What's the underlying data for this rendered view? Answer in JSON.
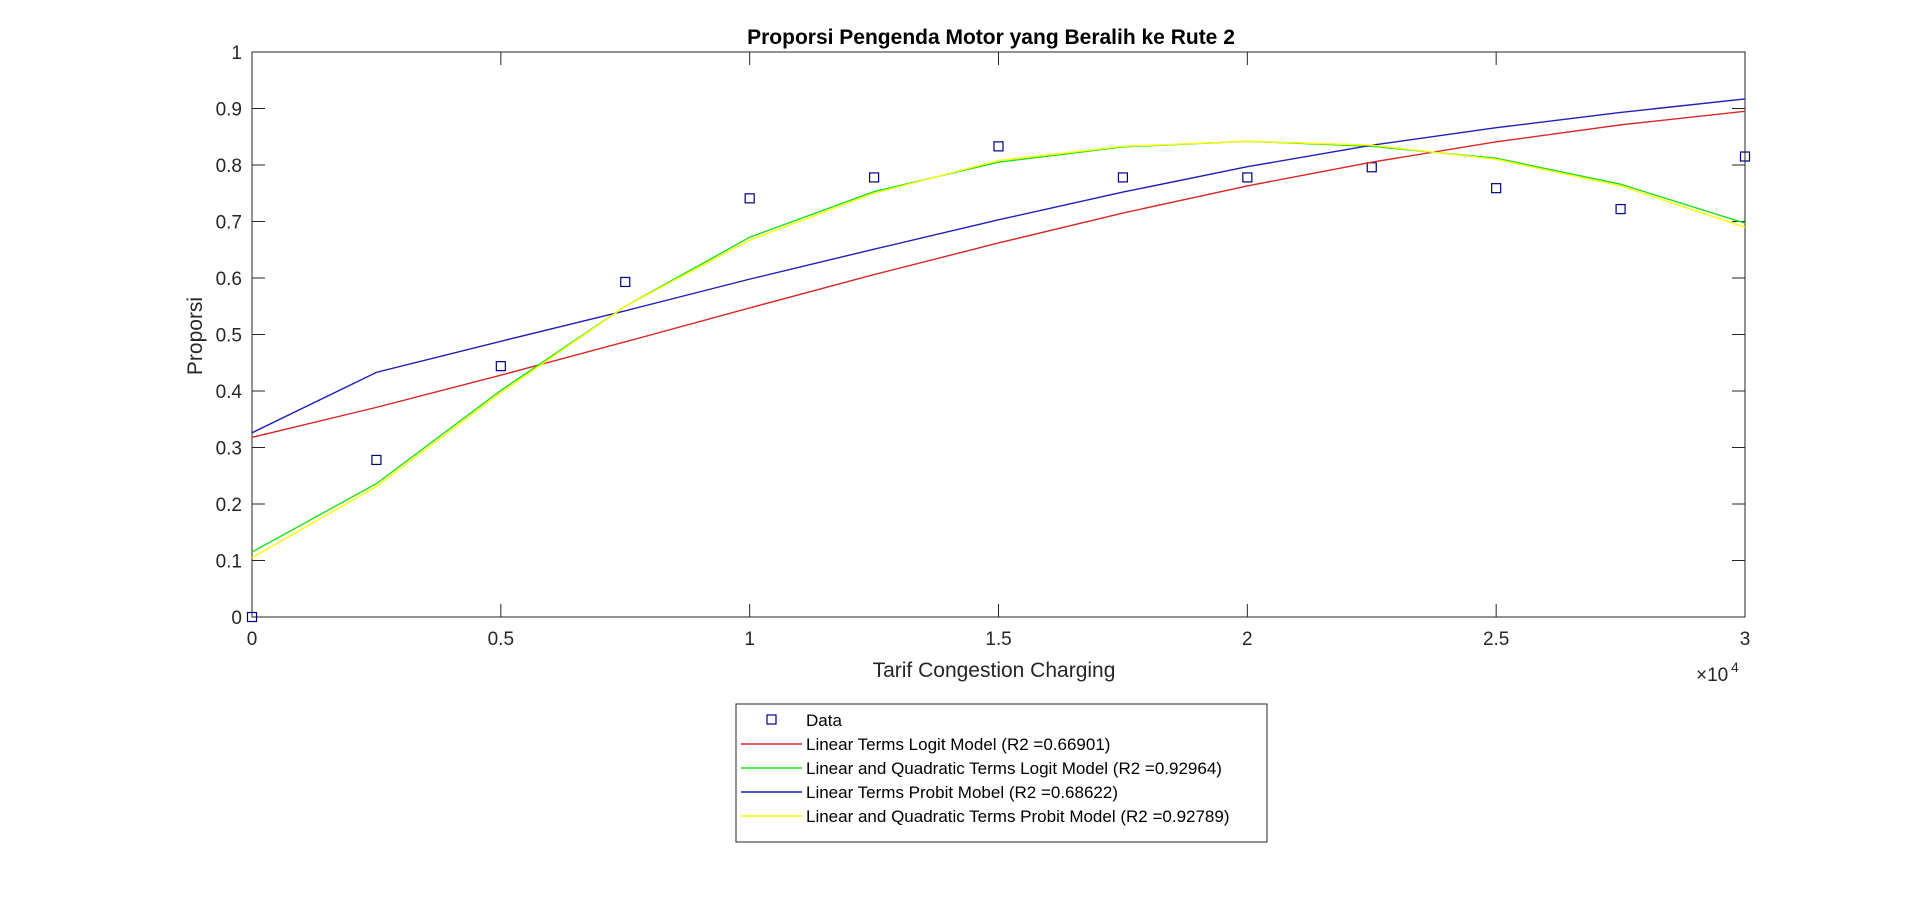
{
  "chart_data": {
    "type": "line",
    "title": "Proporsi Pengenda Motor yang Beralih ke Rute 2",
    "xlabel": "Tarif Congestion Charging",
    "ylabel": "Proporsi",
    "x_exponent_label": "×10",
    "x_exponent_power": "4",
    "xlim": [
      0,
      30000
    ],
    "ylim": [
      0,
      1
    ],
    "x_ticks": [
      0,
      5000,
      10000,
      15000,
      20000,
      25000,
      30000
    ],
    "x_tick_labels": [
      "0",
      "0.5",
      "1",
      "1.5",
      "2",
      "2.5",
      "3"
    ],
    "y_ticks": [
      0,
      0.1,
      0.2,
      0.3,
      0.4,
      0.5,
      0.6,
      0.7,
      0.8,
      0.9,
      1
    ],
    "y_tick_labels": [
      "0",
      "0.1",
      "0.2",
      "0.3",
      "0.4",
      "0.5",
      "0.6",
      "0.7",
      "0.8",
      "0.9",
      "1"
    ],
    "grid": false,
    "legend_position": "bottom-outside",
    "x": [
      0,
      2500,
      5000,
      7500,
      10000,
      12500,
      15000,
      17500,
      20000,
      22500,
      25000,
      27500,
      30000
    ],
    "series": [
      {
        "name": "Data",
        "kind": "marker",
        "marker": "square",
        "color": "#00007f",
        "values": [
          0.0,
          0.278,
          0.444,
          0.593,
          0.741,
          0.778,
          0.833,
          0.778,
          0.778,
          0.796,
          0.759,
          0.722,
          0.815
        ]
      },
      {
        "name": "Linear Terms Logit Model (R2 =0.66901)",
        "kind": "line",
        "color": "#d62728",
        "values": [
          0.318,
          0.371,
          0.428,
          0.487,
          0.547,
          0.606,
          0.662,
          0.715,
          0.763,
          0.805,
          0.841,
          0.871,
          0.895
        ]
      },
      {
        "name": "Linear and Quadratic Terms Logit Model (R2 =0.92964)",
        "kind": "line",
        "color": "#22dd22",
        "values": [
          0.115,
          0.236,
          0.401,
          0.55,
          0.672,
          0.753,
          0.805,
          0.832,
          0.842,
          0.833,
          0.812,
          0.766,
          0.697
        ]
      },
      {
        "name": "Linear Terms Probit Mobel (R2 =0.68622)",
        "kind": "line",
        "color": "#1f1fb4",
        "values": [
          0.326,
          0.433,
          0.488,
          0.542,
          0.598,
          0.651,
          0.703,
          0.752,
          0.797,
          0.835,
          0.866,
          0.893,
          0.917
        ]
      },
      {
        "name": "Linear and Quadratic Terms Probit Model (R2 =0.92789)",
        "kind": "line",
        "color": "#ffff00",
        "values": [
          0.105,
          0.231,
          0.397,
          0.55,
          0.667,
          0.75,
          0.808,
          0.833,
          0.842,
          0.835,
          0.81,
          0.763,
          0.69
        ]
      }
    ]
  }
}
